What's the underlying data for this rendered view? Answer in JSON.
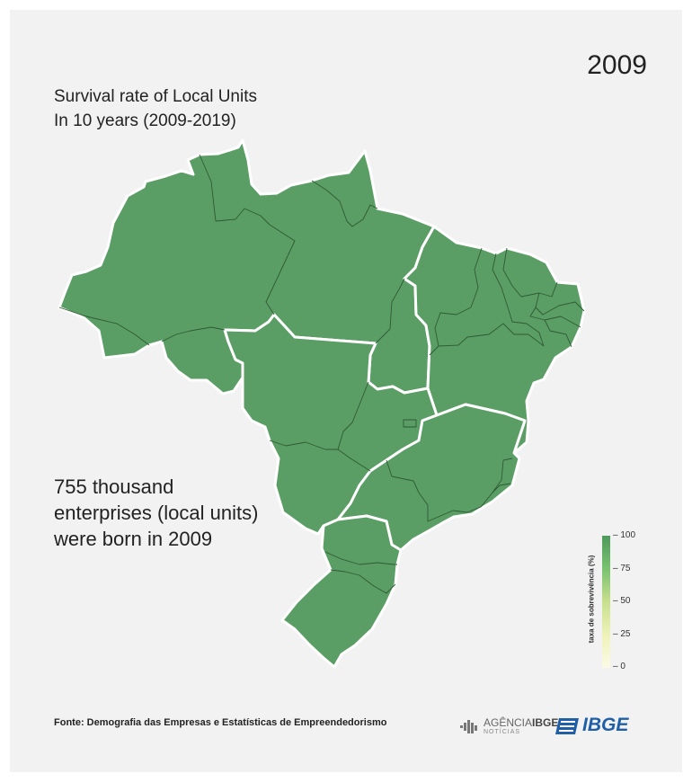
{
  "year": "2009",
  "title": {
    "line1": "Survival rate of Local Units",
    "line2": "In 10 years (2009-2019)"
  },
  "stat": {
    "line1": "755 thousand",
    "line2": "enterprises (local units)",
    "line3": "were born in 2009"
  },
  "legend": {
    "title": "taxa de sobrevivência (%)",
    "ticks": [
      "100",
      "75",
      "50",
      "25",
      "0"
    ],
    "scale_min": 0,
    "scale_max": 100,
    "colors": [
      "#4e9a5c",
      "#78c270",
      "#c8e08e",
      "#eef2b8",
      "#fbfbe6"
    ]
  },
  "map": {
    "fill_color": "#5a9e65",
    "state_border_color": "#2f5a35",
    "region_border_color": "#ffffff"
  },
  "source": "Fonte: Demografia das Empresas e Estatísticas de Empreendedorismo",
  "logos": {
    "agencia_name": "AGÊNCIA",
    "agencia_bold": "IBGE",
    "agencia_sub": "NOTÍCIAS",
    "ibge": "IBGE",
    "ibge_color": "#1f5fa8"
  }
}
